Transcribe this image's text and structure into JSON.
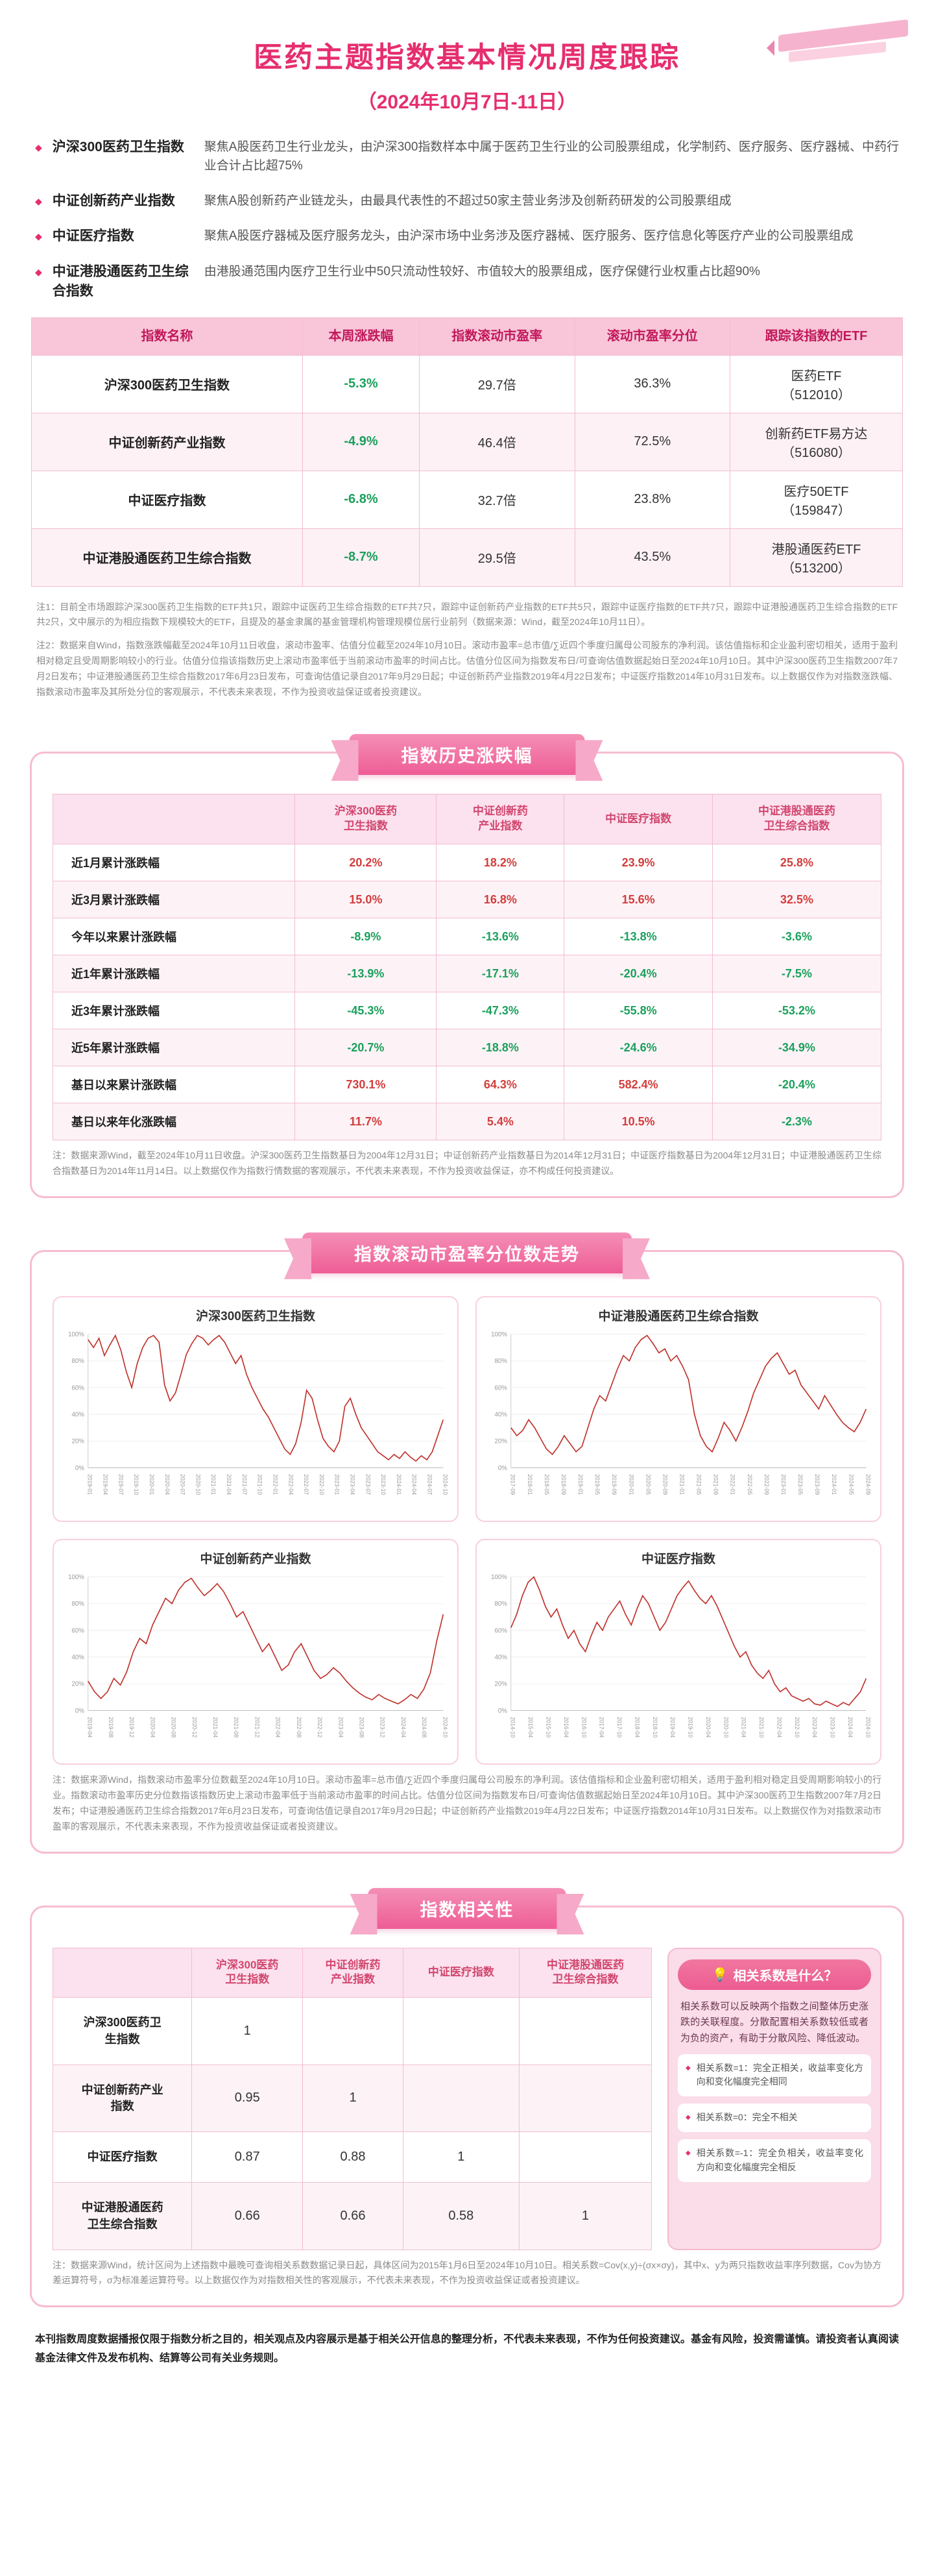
{
  "palette": {
    "accent": "#e62e6f",
    "banner_light": "#f48fb6",
    "banner_dark": "#ee5d95",
    "table_header_bg": "#f8c6d8",
    "table_header_text": "#c2185b",
    "up": "#d43d3d",
    "down": "#1ba05c",
    "chart_line": "#c0312b"
  },
  "header": {
    "title": "医药主题指数基本情况周度跟踪",
    "subtitle": "（2024年10月7日-11日）"
  },
  "intro": {
    "items": [
      {
        "name": "沪深300医药卫生指数",
        "desc": "聚焦A股医药卫生行业龙头，由沪深300指数样本中属于医药卫生行业的公司股票组成，化学制药、医疗服务、医疗器械、中药行业合计占比超75%"
      },
      {
        "name": "中证创新药产业指数",
        "desc": "聚焦A股创新药产业链龙头，由最具代表性的不超过50家主营业务涉及创新药研发的公司股票组成"
      },
      {
        "name": "中证医疗指数",
        "desc": "聚焦A股医疗器械及医疗服务龙头，由沪深市场中业务涉及医疗器械、医疗服务、医疗信息化等医疗产业的公司股票组成"
      },
      {
        "name": "中证港股通医药卫生综合指数",
        "desc": "由港股通范围内医疗卫生行业中50只流动性较好、市值较大的股票组成，医疗保健行业权重占比超90%"
      }
    ]
  },
  "main_table": {
    "headers": [
      "指数名称",
      "本周涨跌幅",
      "指数滚动市盈率",
      "滚动市盈率分位",
      "跟踪该指数的ETF"
    ],
    "rows": [
      [
        "沪深300医药卫生指数",
        "-5.3%",
        "29.7倍",
        "36.3%",
        "医药ETF\n（512010）"
      ],
      [
        "中证创新药产业指数",
        "-4.9%",
        "46.4倍",
        "72.5%",
        "创新药ETF易方达\n（516080）"
      ],
      [
        "中证医疗指数",
        "-6.8%",
        "32.7倍",
        "23.8%",
        "医疗50ETF\n（159847）"
      ],
      [
        "中证港股通医药卫生综合指数",
        "-8.7%",
        "29.5倍",
        "43.5%",
        "港股通医药ETF\n（513200）"
      ]
    ],
    "color_cols": [
      1
    ]
  },
  "notes": {
    "note1": "注1：目前全市场跟踪沪深300医药卫生指数的ETF共1只，跟踪中证医药卫生综合指数的ETF共7只，跟踪中证创新药产业指数的ETF共5只，跟踪中证医疗指数的ETF共7只，跟踪中证港股通医药卫生综合指数的ETF共2只，文中展示的为相应指数下规模较大的ETF，且提及的基金隶属的基金管理机构管理规模位居行业前列（数据来源：Wind，截至2024年10月11日）。",
    "note2": "注2：数据来自Wind，指数涨跌幅截至2024年10月11日收盘，滚动市盈率、估值分位截至2024年10月10日。滚动市盈率=总市值/∑近四个季度归属母公司股东的净利润。该估值指标和企业盈利密切相关，适用于盈利相对稳定且受周期影响较小的行业。估值分位指该指数历史上滚动市盈率低于当前滚动市盈率的时间占比。估值分位区间为指数发布日/可查询估值数据起始日至2024年10月10日。其中沪深300医药卫生指数2007年7月2日发布；中证港股通医药卫生综合指数2017年6月23日发布，可查询估值记录自2017年9月29日起；中证创新药产业指数2019年4月22日发布；中证医疗指数2014年10月31日发布。以上数据仅作为对指数涨跌幅、指数滚动市盈率及其所处分位的客观展示，不代表未来表现，不作为投资收益保证或者投资建议。"
  },
  "history": {
    "banner": "指数历史涨跌幅",
    "table": {
      "headers": [
        "",
        "沪深300医药\n卫生指数",
        "中证创新药\n产业指数",
        "中证医疗指数",
        "中证港股通医药\n卫生综合指数"
      ],
      "rows": [
        [
          "近1月累计涨跌幅",
          "20.2%",
          "18.2%",
          "23.9%",
          "25.8%"
        ],
        [
          "近3月累计涨跌幅",
          "15.0%",
          "16.8%",
          "15.6%",
          "32.5%"
        ],
        [
          "今年以来累计涨跌幅",
          "-8.9%",
          "-13.6%",
          "-13.8%",
          "-3.6%"
        ],
        [
          "近1年累计涨跌幅",
          "-13.9%",
          "-17.1%",
          "-20.4%",
          "-7.5%"
        ],
        [
          "近3年累计涨跌幅",
          "-45.3%",
          "-47.3%",
          "-55.8%",
          "-53.2%"
        ],
        [
          "近5年累计涨跌幅",
          "-20.7%",
          "-18.8%",
          "-24.6%",
          "-34.9%"
        ],
        [
          "基日以来累计涨跌幅",
          "730.1%",
          "64.3%",
          "582.4%",
          "-20.4%"
        ],
        [
          "基日以来年化涨跌幅",
          "11.7%",
          "5.4%",
          "10.5%",
          "-2.3%"
        ]
      ],
      "color_cols": [
        1,
        2,
        3,
        4
      ]
    },
    "note": "注：数据来源Wind，截至2024年10月11日收盘。沪深300医药卫生指数基日为2004年12月31日；中证创新药产业指数基日为2014年12月31日；中证医疗指数基日为2004年12月31日；中证港股通医药卫生综合指数基日为2014年11月14日。以上数据仅作为指数行情数据的客观展示，不代表未来表现，不作为投资收益保证，亦不构成任何投资建议。"
  },
  "pe_charts": {
    "banner": "指数滚动市盈率分位数走势",
    "charts": [
      {
        "type": "line",
        "title": "沪深300医药卫生指数",
        "ylim": [
          0,
          100
        ],
        "yticks": [
          "0%",
          "20%",
          "40%",
          "60%",
          "80%",
          "100%"
        ],
        "xticks": [
          "2019-01",
          "2019-04",
          "2019-07",
          "2019-10",
          "2020-01",
          "2020-04",
          "2020-07",
          "2020-10",
          "2021-01",
          "2021-04",
          "2021-07",
          "2021-10",
          "2022-01",
          "2022-04",
          "2022-07",
          "2022-10",
          "2023-01",
          "2023-04",
          "2023-07",
          "2023-10",
          "2024-01",
          "2024-04",
          "2024-07",
          "2024-10"
        ],
        "values": [
          96,
          90,
          97,
          84,
          92,
          99,
          88,
          72,
          60,
          78,
          90,
          97,
          99,
          94,
          62,
          50,
          56,
          70,
          85,
          93,
          99,
          97,
          92,
          96,
          99,
          94,
          86,
          78,
          84,
          70,
          60,
          52,
          44,
          38,
          30,
          22,
          14,
          10,
          18,
          34,
          58,
          52,
          36,
          22,
          16,
          12,
          20,
          46,
          52,
          40,
          30,
          24,
          18,
          12,
          9,
          6,
          10,
          7,
          12,
          8,
          5,
          9,
          6,
          12,
          24,
          36
        ]
      },
      {
        "type": "line",
        "title": "中证港股通医药卫生综合指数",
        "ylim": [
          0,
          100
        ],
        "yticks": [
          "0%",
          "20%",
          "40%",
          "60%",
          "80%",
          "100%"
        ],
        "xticks": [
          "2017-09",
          "2018-01",
          "2018-05",
          "2018-09",
          "2019-01",
          "2019-05",
          "2019-09",
          "2020-01",
          "2020-05",
          "2020-09",
          "2021-01",
          "2021-05",
          "2021-09",
          "2022-01",
          "2022-05",
          "2022-09",
          "2023-01",
          "2023-05",
          "2023-09",
          "2024-01",
          "2024-05",
          "2024-09"
        ],
        "values": [
          30,
          24,
          28,
          36,
          30,
          22,
          14,
          10,
          16,
          24,
          18,
          12,
          16,
          30,
          44,
          54,
          50,
          62,
          74,
          84,
          80,
          90,
          96,
          99,
          93,
          86,
          89,
          80,
          84,
          76,
          66,
          40,
          24,
          16,
          12,
          22,
          34,
          28,
          20,
          30,
          42,
          56,
          66,
          76,
          82,
          86,
          78,
          70,
          73,
          62,
          56,
          50,
          44,
          54,
          47,
          40,
          34,
          30,
          27,
          34,
          44
        ]
      },
      {
        "type": "line",
        "title": "中证创新药产业指数",
        "ylim": [
          0,
          100
        ],
        "yticks": [
          "0%",
          "20%",
          "40%",
          "60%",
          "80%",
          "100%"
        ],
        "xticks": [
          "2019-04",
          "2019-08",
          "2019-12",
          "2020-04",
          "2020-08",
          "2020-12",
          "2021-04",
          "2021-08",
          "2021-12",
          "2022-04",
          "2022-08",
          "2022-12",
          "2023-04",
          "2023-08",
          "2023-12",
          "2024-04",
          "2024-08",
          "2024-10"
        ],
        "values": [
          22,
          14,
          9,
          14,
          24,
          19,
          29,
          44,
          54,
          50,
          64,
          74,
          84,
          80,
          90,
          96,
          99,
          92,
          86,
          90,
          95,
          89,
          80,
          70,
          74,
          64,
          54,
          44,
          50,
          40,
          30,
          34,
          44,
          50,
          40,
          30,
          24,
          27,
          32,
          28,
          22,
          17,
          13,
          10,
          8,
          12,
          9,
          7,
          5,
          8,
          12,
          9,
          16,
          28,
          52,
          72
        ]
      },
      {
        "type": "line",
        "title": "中证医疗指数",
        "ylim": [
          0,
          100
        ],
        "yticks": [
          "0%",
          "20%",
          "40%",
          "60%",
          "80%",
          "100%"
        ],
        "xticks": [
          "2014-10",
          "2015-04",
          "2015-10",
          "2016-04",
          "2016-10",
          "2017-04",
          "2017-10",
          "2018-04",
          "2018-10",
          "2019-04",
          "2019-10",
          "2020-04",
          "2020-10",
          "2021-04",
          "2021-10",
          "2022-04",
          "2022-10",
          "2023-04",
          "2023-10",
          "2024-04",
          "2024-10"
        ],
        "values": [
          62,
          72,
          86,
          96,
          100,
          90,
          78,
          70,
          76,
          64,
          54,
          60,
          50,
          44,
          56,
          66,
          60,
          70,
          76,
          82,
          72,
          64,
          76,
          86,
          80,
          70,
          60,
          66,
          76,
          86,
          92,
          97,
          90,
          84,
          80,
          86,
          78,
          68,
          58,
          48,
          40,
          44,
          34,
          28,
          24,
          30,
          20,
          14,
          17,
          11,
          9,
          7,
          9,
          5,
          4,
          7,
          5,
          3,
          6,
          4,
          9,
          14,
          24
        ]
      }
    ],
    "note": "注：数据来源Wind，指数滚动市盈率分位数截至2024年10月10日。滚动市盈率=总市值/∑近四个季度归属母公司股东的净利润。该估值指标和企业盈利密切相关，适用于盈利相对稳定且受周期影响较小的行业。指数滚动市盈率历史分位数指该指数历史上滚动市盈率低于当前滚动市盈率的时间占比。估值分位区间为指数发布日/可查询估值数据起始日至2024年10月10日。其中沪深300医药卫生指数2007年7月2日发布；中证港股通医药卫生综合指数2017年6月23日发布，可查询估值记录自2017年9月29日起；中证创新药产业指数2019年4月22日发布；中证医疗指数2014年10月31日发布。以上数据仅作为对指数滚动市盈率的客观展示，不代表未来表现，不作为投资收益保证或者投资建议。"
  },
  "correlation": {
    "banner": "指数相关性",
    "table": {
      "headers": [
        "",
        "沪深300医药\n卫生指数",
        "中证创新药\n产业指数",
        "中证医疗指数",
        "中证港股通医药\n卫生综合指数"
      ],
      "rows": [
        [
          "沪深300医药卫\n生指数",
          "1",
          "",
          "",
          ""
        ],
        [
          "中证创新药产业\n指数",
          "0.95",
          "1",
          "",
          ""
        ],
        [
          "中证医疗指数",
          "0.87",
          "0.88",
          "1",
          ""
        ],
        [
          "中证港股通医药\n卫生综合指数",
          "0.66",
          "0.66",
          "0.58",
          "1"
        ]
      ],
      "color_cols": []
    },
    "sidebar": {
      "icon": "💡",
      "title": "相关系数是什么？",
      "intro": "相关系数可以反映两个指数之间整体历史涨跌的关联程度。分散配置相关系数较低或者为负的资产，有助于分散风险、降低波动。",
      "bullets": [
        "相关系数=1：完全正相关，收益率变化方向和变化幅度完全相同",
        "相关系数=0：完全不相关",
        "相关系数=-1：完全负相关，收益率变化方向和变化幅度完全相反"
      ]
    },
    "note": "注：数据来源Wind，统计区间为上述指数中最晚可查询相关系数数据记录日起，具体区间为2015年1月6日至2024年10月10日。相关系数=Cov(x,y)÷(σx×σy)，其中x、y为两只指数收益率序列数据，Cov为协方差运算符号，σ为标准差运算符号。以上数据仅作为对指数相关性的客观展示，不代表未来表现，不作为投资收益保证或者投资建议。"
  },
  "footer": {
    "disclaimer": "本刊指数周度数据播报仅限于指数分析之目的，相关观点及内容展示是基于相关公开信息的整理分析，不代表未来表现，不作为任何投资建议。基金有风险，投资需谨慎。请投资者认真阅读基金法律文件及发布机构、结算等公司有关业务规则。"
  }
}
